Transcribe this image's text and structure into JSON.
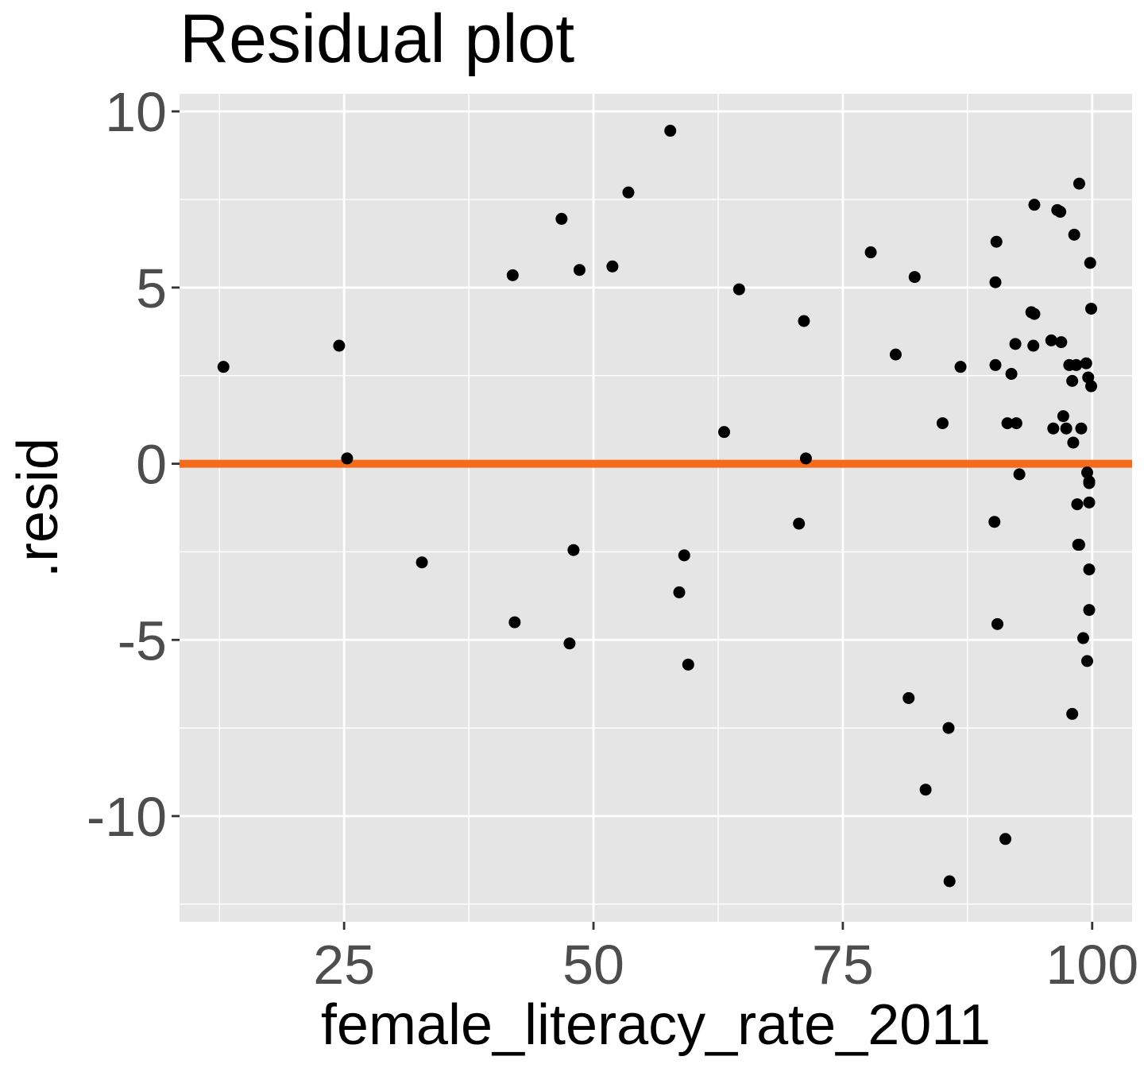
{
  "chart_data": {
    "type": "scatter",
    "title": "Residual plot",
    "xlabel": "female_literacy_rate_2011",
    "ylabel": ".resid",
    "xlim": [
      8.5,
      104
    ],
    "ylim": [
      -13,
      10.5
    ],
    "x_ticks": [
      25,
      50,
      75,
      100
    ],
    "x_tick_labels": [
      "25",
      "50",
      "75",
      "100"
    ],
    "y_ticks": [
      -10,
      -5,
      0,
      5,
      10
    ],
    "y_tick_labels": [
      "-10",
      "-5",
      "0",
      "5",
      "10"
    ],
    "grid": true,
    "background": "#e5e5e5",
    "point_color": "#000000",
    "reference_line": {
      "y": 0,
      "color": "#f46b1c"
    },
    "points": [
      {
        "x": 12.9,
        "y": 2.75
      },
      {
        "x": 24.5,
        "y": 3.35
      },
      {
        "x": 25.3,
        "y": 0.15
      },
      {
        "x": 32.8,
        "y": -2.8
      },
      {
        "x": 41.9,
        "y": 5.35
      },
      {
        "x": 42.1,
        "y": -4.5
      },
      {
        "x": 46.8,
        "y": 6.95
      },
      {
        "x": 47.6,
        "y": -5.1
      },
      {
        "x": 48.0,
        "y": -2.45
      },
      {
        "x": 48.6,
        "y": 5.5
      },
      {
        "x": 51.9,
        "y": 5.6
      },
      {
        "x": 53.5,
        "y": 7.7
      },
      {
        "x": 57.7,
        "y": 9.45
      },
      {
        "x": 58.6,
        "y": -3.65
      },
      {
        "x": 59.1,
        "y": -2.6
      },
      {
        "x": 59.5,
        "y": -5.7
      },
      {
        "x": 63.1,
        "y": 0.9
      },
      {
        "x": 64.6,
        "y": 4.95
      },
      {
        "x": 70.6,
        "y": -1.7
      },
      {
        "x": 71.1,
        "y": 4.05
      },
      {
        "x": 71.3,
        "y": 0.15
      },
      {
        "x": 77.8,
        "y": 6.0
      },
      {
        "x": 80.3,
        "y": 3.1
      },
      {
        "x": 81.6,
        "y": -6.65
      },
      {
        "x": 82.2,
        "y": 5.3
      },
      {
        "x": 83.3,
        "y": -9.25
      },
      {
        "x": 85.0,
        "y": 1.15
      },
      {
        "x": 85.6,
        "y": -7.5
      },
      {
        "x": 85.7,
        "y": -11.85
      },
      {
        "x": 86.8,
        "y": 2.75
      },
      {
        "x": 90.2,
        "y": -1.65
      },
      {
        "x": 90.3,
        "y": 2.8
      },
      {
        "x": 90.3,
        "y": 5.15
      },
      {
        "x": 90.4,
        "y": 6.3
      },
      {
        "x": 90.5,
        "y": -4.55
      },
      {
        "x": 91.3,
        "y": -10.65
      },
      {
        "x": 91.5,
        "y": 1.15
      },
      {
        "x": 91.9,
        "y": 2.55
      },
      {
        "x": 92.3,
        "y": 3.4
      },
      {
        "x": 92.4,
        "y": 1.15
      },
      {
        "x": 92.7,
        "y": -0.3
      },
      {
        "x": 93.9,
        "y": 4.3
      },
      {
        "x": 94.1,
        "y": 3.35
      },
      {
        "x": 94.2,
        "y": 4.25
      },
      {
        "x": 94.2,
        "y": 7.35
      },
      {
        "x": 95.9,
        "y": 3.5
      },
      {
        "x": 96.1,
        "y": 1.0
      },
      {
        "x": 96.5,
        "y": 7.2
      },
      {
        "x": 96.8,
        "y": 7.15
      },
      {
        "x": 96.9,
        "y": 3.45
      },
      {
        "x": 97.1,
        "y": 1.35
      },
      {
        "x": 97.4,
        "y": 1.0
      },
      {
        "x": 97.7,
        "y": 2.8
      },
      {
        "x": 98.0,
        "y": 2.35
      },
      {
        "x": 98.0,
        "y": -7.1
      },
      {
        "x": 98.1,
        "y": 0.6
      },
      {
        "x": 98.2,
        "y": 6.5
      },
      {
        "x": 98.4,
        "y": 2.8
      },
      {
        "x": 98.5,
        "y": -1.15
      },
      {
        "x": 98.6,
        "y": -2.3
      },
      {
        "x": 98.7,
        "y": 7.95
      },
      {
        "x": 98.7,
        "y": -2.3
      },
      {
        "x": 98.9,
        "y": 1.0
      },
      {
        "x": 99.1,
        "y": -4.95
      },
      {
        "x": 99.4,
        "y": 2.85
      },
      {
        "x": 99.5,
        "y": -5.6
      },
      {
        "x": 99.5,
        "y": -0.25
      },
      {
        "x": 99.6,
        "y": 2.45
      },
      {
        "x": 99.7,
        "y": -0.55
      },
      {
        "x": 99.7,
        "y": -0.5
      },
      {
        "x": 99.7,
        "y": -1.1
      },
      {
        "x": 99.7,
        "y": -3.0
      },
      {
        "x": 99.7,
        "y": -4.15
      },
      {
        "x": 99.8,
        "y": 5.7
      },
      {
        "x": 99.9,
        "y": 2.2
      },
      {
        "x": 99.9,
        "y": 4.4
      }
    ]
  }
}
